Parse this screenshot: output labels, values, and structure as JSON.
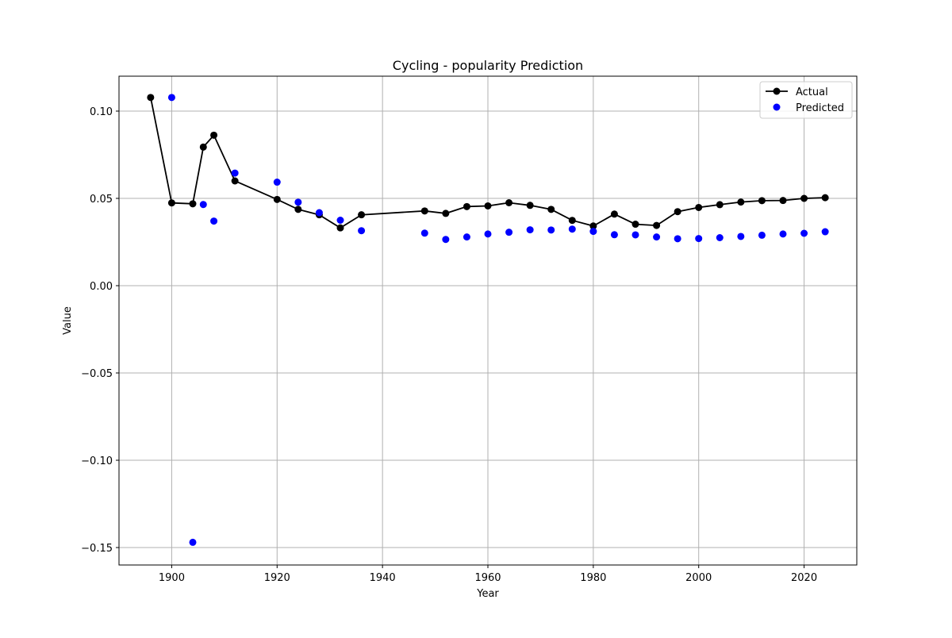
{
  "chart_data": {
    "type": "line",
    "title": "Cycling - popularity Prediction",
    "xlabel": "Year",
    "ylabel": "Value",
    "xlim": [
      1890,
      2030
    ],
    "ylim": [
      -0.16,
      0.12
    ],
    "xticks": [
      1900,
      1920,
      1940,
      1960,
      1980,
      2000,
      2020
    ],
    "yticks": [
      0.1,
      0.05,
      0.0,
      -0.05,
      -0.1,
      -0.15
    ],
    "ytick_labels": [
      "0.10",
      "0.05",
      "0.00",
      "−0.05",
      "−0.10",
      "−0.15"
    ],
    "grid": true,
    "legend_position": "top-right",
    "series": [
      {
        "name": "Actual",
        "kind": "line-marker",
        "color": "#000000",
        "x": [
          1896,
          1900,
          1904,
          1906,
          1908,
          1912,
          1920,
          1924,
          1928,
          1932,
          1936,
          1948,
          1952,
          1956,
          1960,
          1964,
          1968,
          1972,
          1976,
          1980,
          1984,
          1988,
          1992,
          1996,
          2000,
          2004,
          2008,
          2012,
          2016,
          2020,
          2024
        ],
        "y": [
          0.1078,
          0.0474,
          0.0469,
          0.0794,
          0.0862,
          0.06,
          0.0494,
          0.0437,
          0.0406,
          0.0331,
          0.0406,
          0.0428,
          0.0414,
          0.0453,
          0.0457,
          0.0475,
          0.046,
          0.0437,
          0.0374,
          0.0342,
          0.041,
          0.0352,
          0.0345,
          0.0424,
          0.0448,
          0.0464,
          0.0479,
          0.0487,
          0.0488,
          0.05,
          0.0504
        ]
      },
      {
        "name": "Predicted",
        "kind": "scatter",
        "color": "#0000ff",
        "x": [
          1900,
          1904,
          1906,
          1908,
          1912,
          1920,
          1924,
          1928,
          1932,
          1936,
          1948,
          1952,
          1956,
          1960,
          1964,
          1968,
          1972,
          1976,
          1980,
          1984,
          1988,
          1992,
          1996,
          2000,
          2004,
          2008,
          2012,
          2016,
          2020,
          2024
        ],
        "y": [
          0.1078,
          -0.147,
          0.0465,
          0.037,
          0.0645,
          0.0593,
          0.0478,
          0.0418,
          0.0375,
          0.0315,
          0.0301,
          0.0265,
          0.0279,
          0.0296,
          0.0306,
          0.032,
          0.0319,
          0.0324,
          0.0311,
          0.0292,
          0.0291,
          0.0279,
          0.0269,
          0.027,
          0.0275,
          0.0282,
          0.0289,
          0.0296,
          0.03,
          0.0309
        ]
      }
    ]
  }
}
